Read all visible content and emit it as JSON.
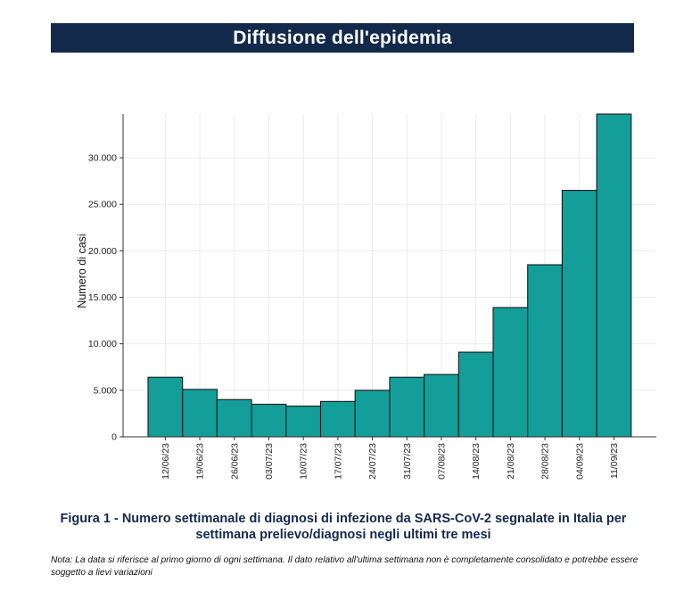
{
  "header": {
    "title": "Diffusione dell'epidemia"
  },
  "chart_data": {
    "type": "bar",
    "title": "",
    "xlabel": "",
    "ylabel": "Numero di casi",
    "categories": [
      "12/06/23",
      "19/06/23",
      "26/06/23",
      "03/07/23",
      "10/07/23",
      "17/07/23",
      "24/07/23",
      "31/07/23",
      "07/08/23",
      "14/08/23",
      "21/08/23",
      "28/08/23",
      "04/09/23",
      "11/09/23"
    ],
    "values": [
      6400,
      5100,
      4000,
      3500,
      3300,
      3800,
      5000,
      6400,
      6700,
      9100,
      13900,
      18500,
      26500,
      34700
    ],
    "ylim": [
      0,
      34700
    ],
    "yticks": [
      0,
      5000,
      10000,
      15000,
      20000,
      25000,
      30000
    ],
    "ytick_labels": [
      "0",
      "5.000",
      "10.000",
      "15.000",
      "20.000",
      "25.000",
      "30.000"
    ],
    "grid": true,
    "legend": "none",
    "bar_color": "#139e9a",
    "bar_edge_color": "#1a1a1a"
  },
  "caption": {
    "line1": "Figura 1 - Numero settimanale di diagnosi di infezione da SARS-CoV-2 segnalate in Italia per",
    "line2": "settimana prelievo/diagnosi negli ultimi tre mesi"
  },
  "note": {
    "line1": "Nota: La data si riferisce al primo giorno di ogni settimana. Il dato relativo all'ultima settimana non è completamente consolidato e potrebbe essere",
    "line2": "soggetto a lievi variazioni"
  },
  "colors": {
    "banner": "#13294b",
    "caption": "#13294b"
  }
}
